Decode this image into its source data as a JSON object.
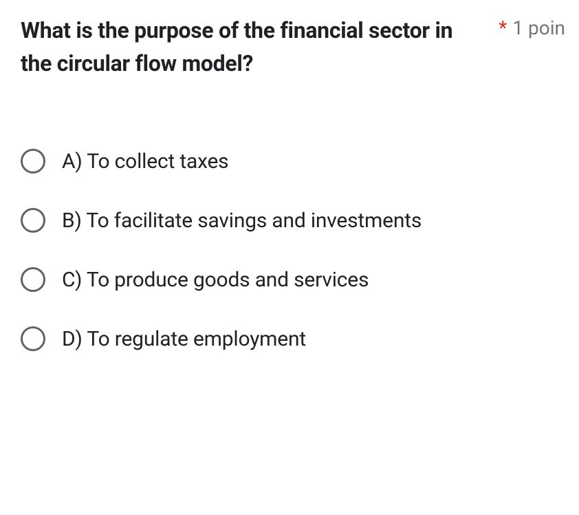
{
  "question": {
    "text": "What is the purpose of the financial sector in the circular flow model?",
    "required_marker": "*",
    "points_label": "1 poin"
  },
  "options": [
    {
      "label": "A) To collect taxes"
    },
    {
      "label": "B) To facilitate savings and investments"
    },
    {
      "label": "C) To produce goods and services"
    },
    {
      "label": "D) To regulate employment"
    }
  ],
  "colors": {
    "text_primary": "#202124",
    "text_secondary": "#70757a",
    "required": "#d93025",
    "radio_border": "#5f6368",
    "background": "#ffffff"
  },
  "typography": {
    "question_fontsize": 32,
    "question_fontweight": 700,
    "points_fontsize": 28,
    "option_fontsize": 30
  }
}
